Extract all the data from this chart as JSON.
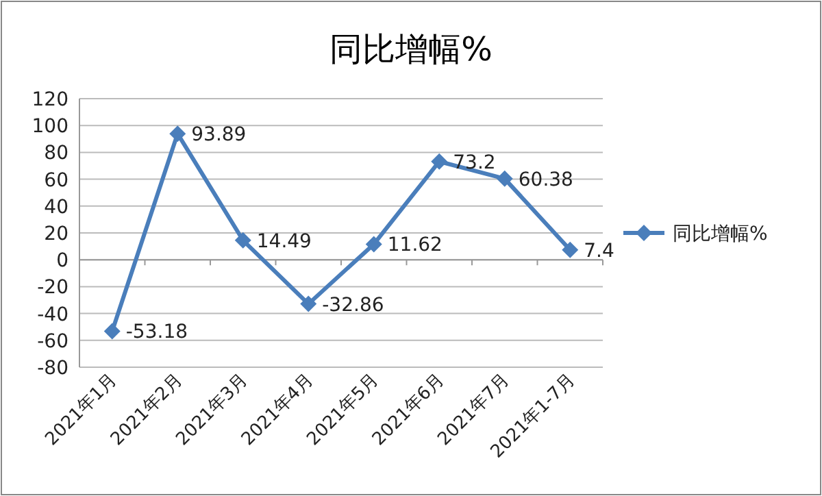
{
  "chart_data": {
    "type": "line",
    "title": "同比增幅%",
    "categories": [
      "2021年1月",
      "2021年2月",
      "2021年3月",
      "2021年4月",
      "2021年5月",
      "2021年6月",
      "2021年7月",
      "2021年1-7月"
    ],
    "series": [
      {
        "name": "同比增幅%",
        "color": "#4a7ebb",
        "values": [
          -53.18,
          93.89,
          14.49,
          -32.86,
          11.62,
          73.2,
          60.38,
          7.4
        ]
      }
    ],
    "ylim": [
      -80,
      120
    ],
    "yticks": [
      -80,
      -60,
      -40,
      -20,
      0,
      20,
      40,
      60,
      80,
      100,
      120
    ],
    "grid": "y",
    "legend": "right",
    "marker": "diamond",
    "data_labels": true
  }
}
